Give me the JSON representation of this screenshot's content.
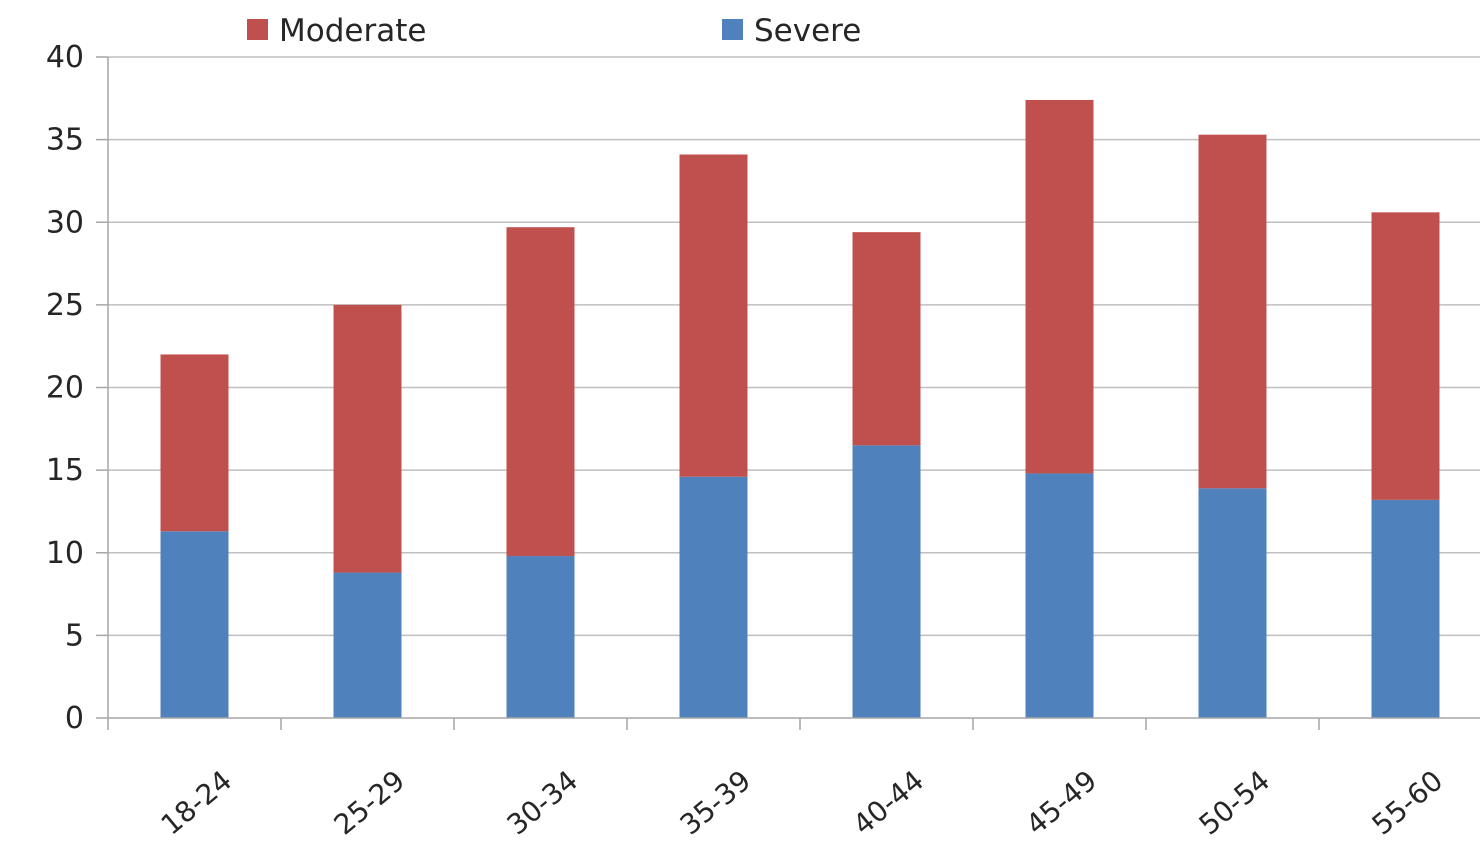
{
  "chart_data": {
    "type": "bar",
    "stacked": true,
    "title": "",
    "xlabel": "",
    "ylabel": "",
    "categories": [
      "18-24",
      "25-29",
      "30-34",
      "35-39",
      "40-44",
      "45-49",
      "50-54",
      "55-60"
    ],
    "series": [
      {
        "name": "Severe",
        "color": "#4F81BD",
        "values": [
          11.3,
          8.8,
          9.8,
          14.6,
          16.5,
          14.8,
          13.9,
          13.2
        ]
      },
      {
        "name": "Moderate",
        "color": "#C0504D",
        "values": [
          10.7,
          16.2,
          19.9,
          19.5,
          12.9,
          22.6,
          21.4,
          17.4
        ]
      }
    ],
    "ylim": [
      0,
      40
    ],
    "yticks": [
      0,
      5,
      10,
      15,
      20,
      25,
      30,
      35,
      40
    ],
    "grid": true,
    "legend": {
      "position": "top",
      "order": [
        "Moderate",
        "Severe"
      ]
    }
  }
}
